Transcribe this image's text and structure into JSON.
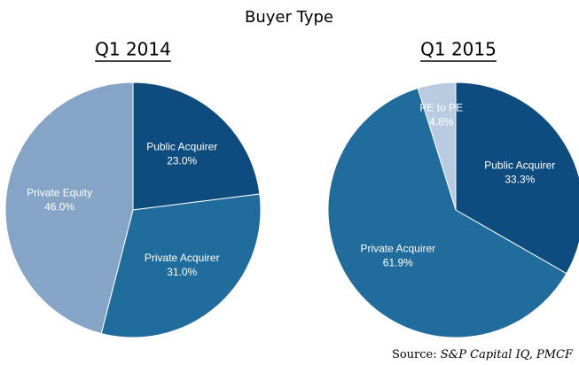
{
  "title": "Buyer Type",
  "source_prefix": "Source:",
  "source_names": "S&P Capital IQ, PMCF",
  "chart_data": [
    {
      "type": "pie",
      "title": "Q1 2014",
      "categories": [
        "Public Acquirer",
        "Private Acquirer",
        "Private Equity"
      ],
      "values": [
        23.0,
        31.0,
        46.0
      ],
      "value_labels": [
        "23.0%",
        "31.0%",
        "46.0%"
      ],
      "colors": [
        "#0e4c80",
        "#1f6c9d",
        "#86a4c6"
      ]
    },
    {
      "type": "pie",
      "title": "Q1 2015",
      "categories": [
        "Public Acquirer",
        "Private Acquirer",
        "PE to PE"
      ],
      "values": [
        33.3,
        61.9,
        4.8
      ],
      "value_labels": [
        "33.3%",
        "61.9%",
        "4.8%"
      ],
      "colors": [
        "#0e4c80",
        "#1f6c9d",
        "#b8cbe0"
      ]
    }
  ]
}
